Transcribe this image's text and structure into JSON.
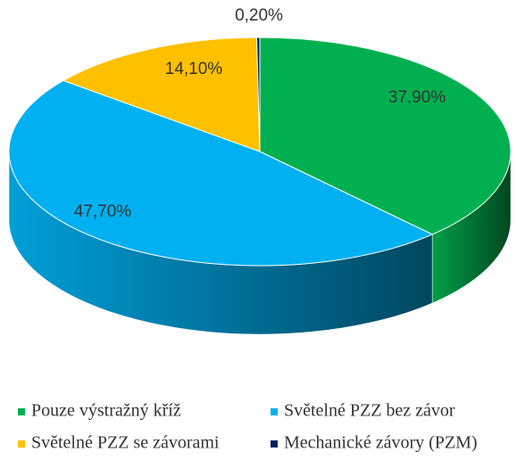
{
  "chart_data": {
    "type": "pie3d",
    "categories": [
      "Pouze výstražný kříž",
      "Světelné PZZ bez závor",
      "Světelné PZZ se závorami",
      "Mechanické závory (PZM)"
    ],
    "values": [
      37.9,
      47.7,
      14.1,
      0.2
    ],
    "value_labels": [
      "37,90%",
      "47,70%",
      "14,10%",
      "0,20%"
    ],
    "colors": [
      "#00b050",
      "#00b0f0",
      "#ffc000",
      "#002060"
    ],
    "legend": "bottom"
  }
}
